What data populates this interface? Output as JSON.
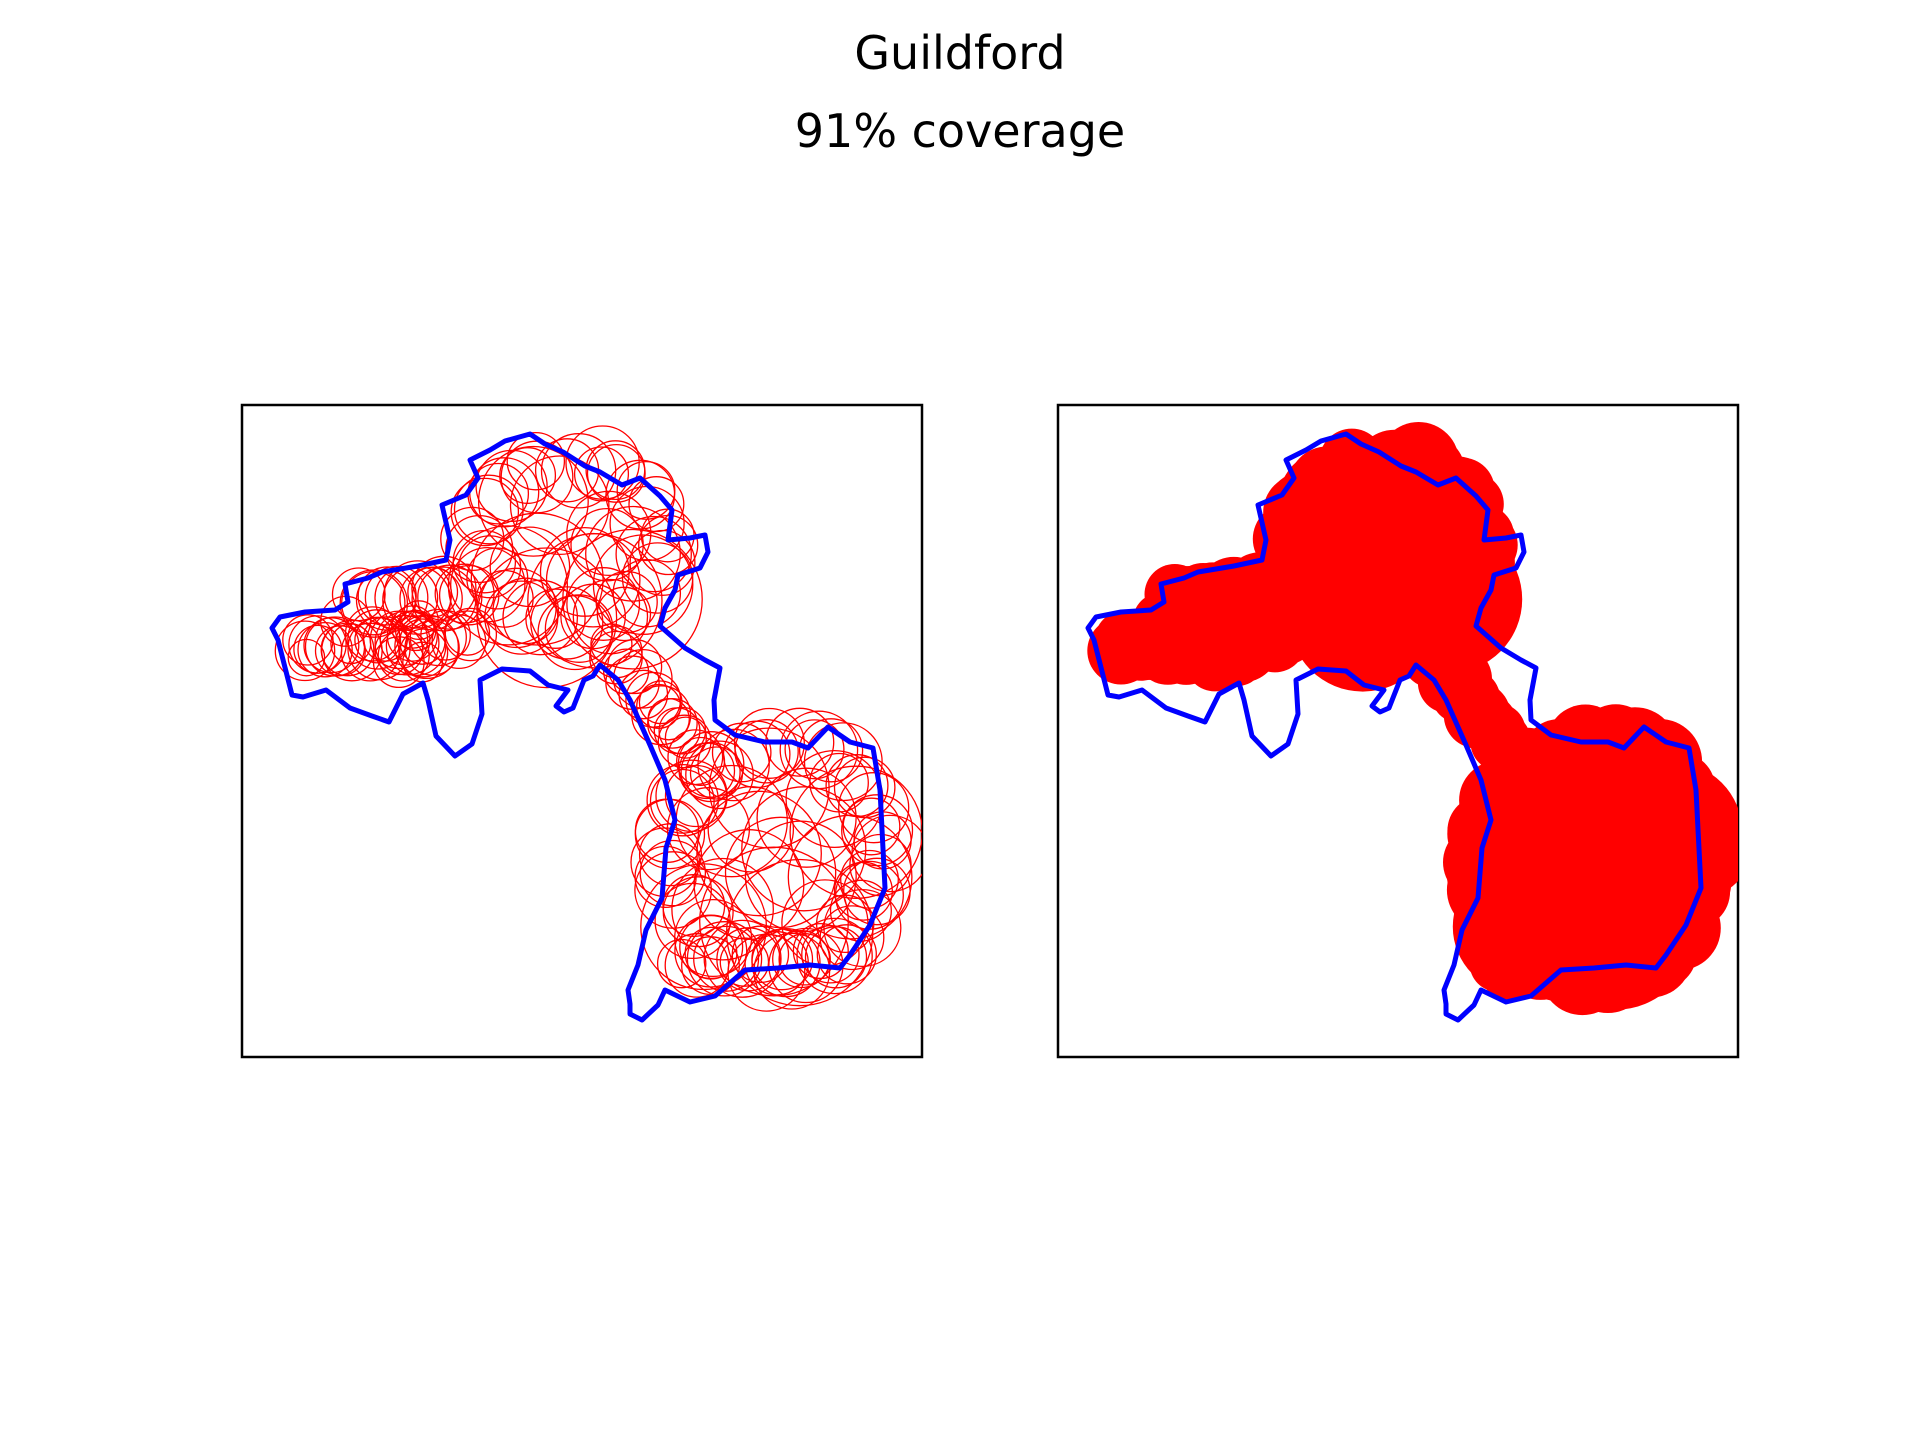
{
  "figure": {
    "title": "Guildford",
    "subtitle": "91% coverage"
  },
  "colors": {
    "boundary": "#0000ff",
    "coverage": "#ff0000",
    "frame": "#000000",
    "background": "#ffffff"
  },
  "panels": [
    {
      "id": "left",
      "style": "circle-outlines"
    },
    {
      "id": "right",
      "style": "filled-union"
    }
  ]
}
